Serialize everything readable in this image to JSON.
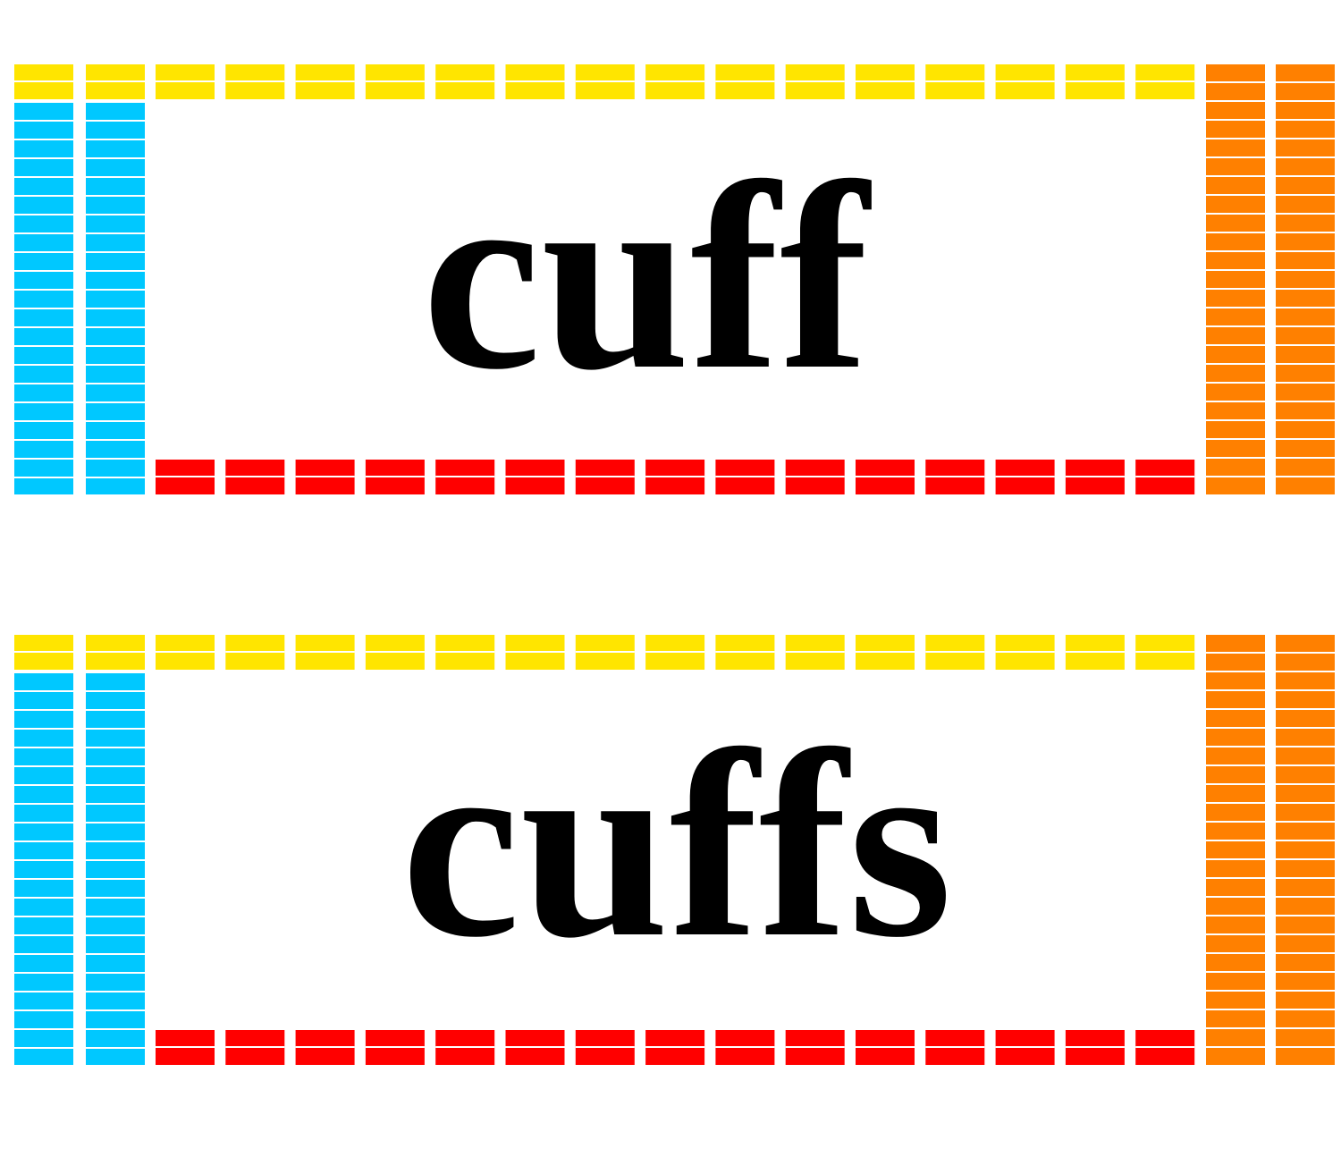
{
  "cards": [
    {
      "word": "cuff"
    },
    {
      "word": "cuffs"
    }
  ]
}
